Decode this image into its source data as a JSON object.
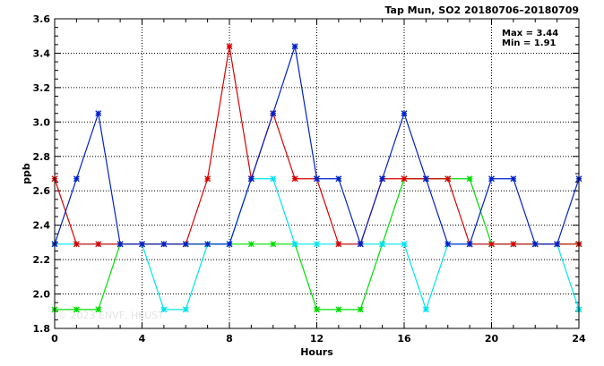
{
  "chart_data": {
    "type": "line",
    "title": "Tap Mun, SO2 20180706–20180709",
    "xlabel": "Hours",
    "ylabel": "ppb",
    "xlim": [
      0,
      24
    ],
    "ylim": [
      1.8,
      3.6
    ],
    "xticks": [
      0,
      4,
      8,
      12,
      16,
      20,
      24
    ],
    "yticks": [
      1.8,
      2.0,
      2.2,
      2.4,
      2.6,
      2.8,
      3.0,
      3.2,
      3.4,
      3.6
    ],
    "ytick_labels": [
      "1.8",
      "2.0",
      "2.2",
      "2.4",
      "2.6",
      "2.8",
      "3.0",
      "3.2",
      "3.4",
      "3.6"
    ],
    "grid": true,
    "annotations": {
      "max": "Max = 3.44",
      "min": "Min = 1.91"
    },
    "watermark": "© 2023 ENVF, HKUST",
    "x": [
      0,
      1,
      2,
      3,
      4,
      5,
      6,
      7,
      8,
      9,
      10,
      11,
      12,
      13,
      14,
      15,
      16,
      17,
      18,
      19,
      20,
      21,
      22,
      23,
      24
    ],
    "series": [
      {
        "color": "#00dd00",
        "values": [
          1.91,
          1.91,
          1.91,
          2.29,
          2.29,
          2.29,
          2.29,
          2.29,
          2.29,
          2.29,
          2.29,
          2.29,
          1.91,
          1.91,
          1.91,
          2.29,
          2.67,
          2.67,
          2.67,
          2.67,
          2.29,
          2.29,
          2.29,
          2.29,
          2.29
        ]
      },
      {
        "color": "#00e5ee",
        "values": [
          2.29,
          2.29,
          2.29,
          2.29,
          2.29,
          1.91,
          1.91,
          2.29,
          2.29,
          2.67,
          2.67,
          2.29,
          2.29,
          2.29,
          2.29,
          2.29,
          2.29,
          1.91,
          2.29,
          2.29,
          2.29,
          2.29,
          2.29,
          2.29,
          1.91
        ]
      },
      {
        "color": "#dd0000",
        "values": [
          2.67,
          2.29,
          2.29,
          2.29,
          2.29,
          2.29,
          2.29,
          2.67,
          3.44,
          2.67,
          3.05,
          2.67,
          2.67,
          2.29,
          2.29,
          2.67,
          2.67,
          2.67,
          2.67,
          2.29,
          2.29,
          2.29,
          2.29,
          2.29,
          2.29
        ]
      },
      {
        "color": "#0022cc",
        "values": [
          2.29,
          2.67,
          3.05,
          2.29,
          2.29,
          2.29,
          2.29,
          2.29,
          2.29,
          2.67,
          3.05,
          3.44,
          2.67,
          2.67,
          2.29,
          2.67,
          3.05,
          2.67,
          2.29,
          2.29,
          2.67,
          2.67,
          2.29,
          2.29,
          2.67
        ]
      }
    ]
  }
}
